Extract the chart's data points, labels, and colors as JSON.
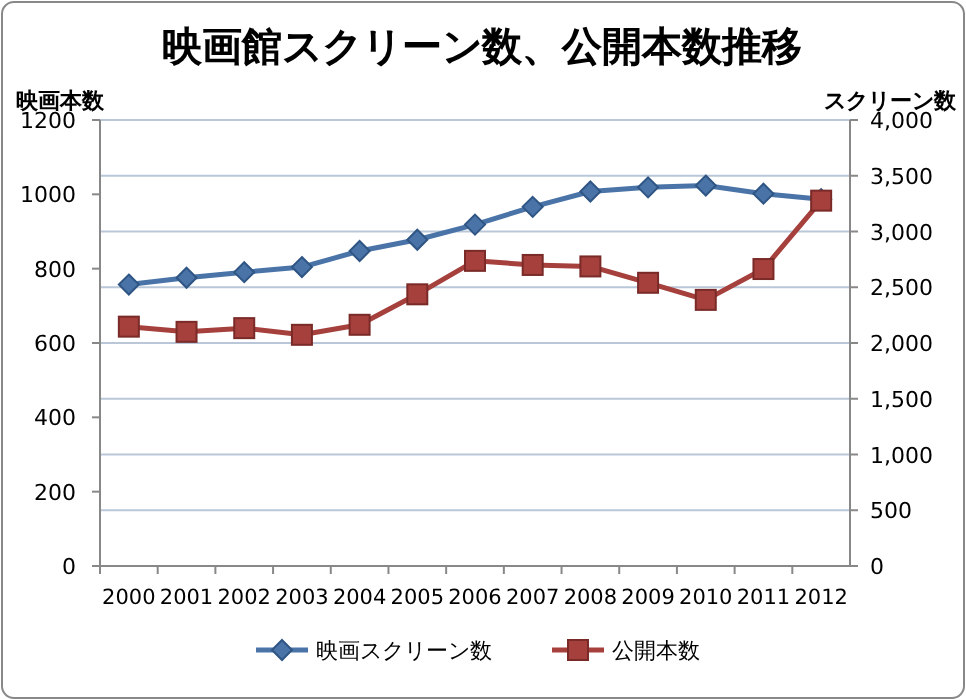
{
  "chart_data": {
    "type": "line",
    "title": "映画館スクリーン数、公開本数推移",
    "ylabel": "映画本数",
    "y2label": "スクリーン数",
    "categories": [
      "2000",
      "2001",
      "2002",
      "2003",
      "2004",
      "2005",
      "2006",
      "2007",
      "2008",
      "2009",
      "2010",
      "2011",
      "2012"
    ],
    "series": [
      {
        "name": "映画スクリーン数",
        "color": "#4a74a8",
        "marker": "diamond",
        "axis": "y2",
        "values": [
          2524,
          2585,
          2635,
          2681,
          2825,
          2926,
          3062,
          3221,
          3359,
          3396,
          3412,
          3339,
          3290
        ]
      },
      {
        "name": "公開本数",
        "color": "#a5403d",
        "marker": "square",
        "values": [
          644,
          630,
          640,
          622,
          649,
          731,
          821,
          810,
          806,
          762,
          716,
          799,
          983
        ]
      }
    ],
    "ylim": [
      0,
      1200
    ],
    "yticks": [
      0,
      200,
      400,
      600,
      800,
      1000,
      1200
    ],
    "y2lim": [
      0,
      4000
    ],
    "y2ticks": [
      0,
      {
        "value": 500,
        "label": "500"
      },
      {
        "value": 1000,
        "label": "1,000"
      },
      {
        "value": 1500,
        "label": "1,500"
      },
      {
        "value": 2000,
        "label": "2,000"
      },
      {
        "value": 2500,
        "label": "2,500"
      },
      {
        "value": 3000,
        "label": "3,000"
      },
      {
        "value": 3500,
        "label": "3,500"
      },
      {
        "value": 4000,
        "label": "4,000"
      }
    ],
    "grid": "y2",
    "legend": "bottom"
  }
}
